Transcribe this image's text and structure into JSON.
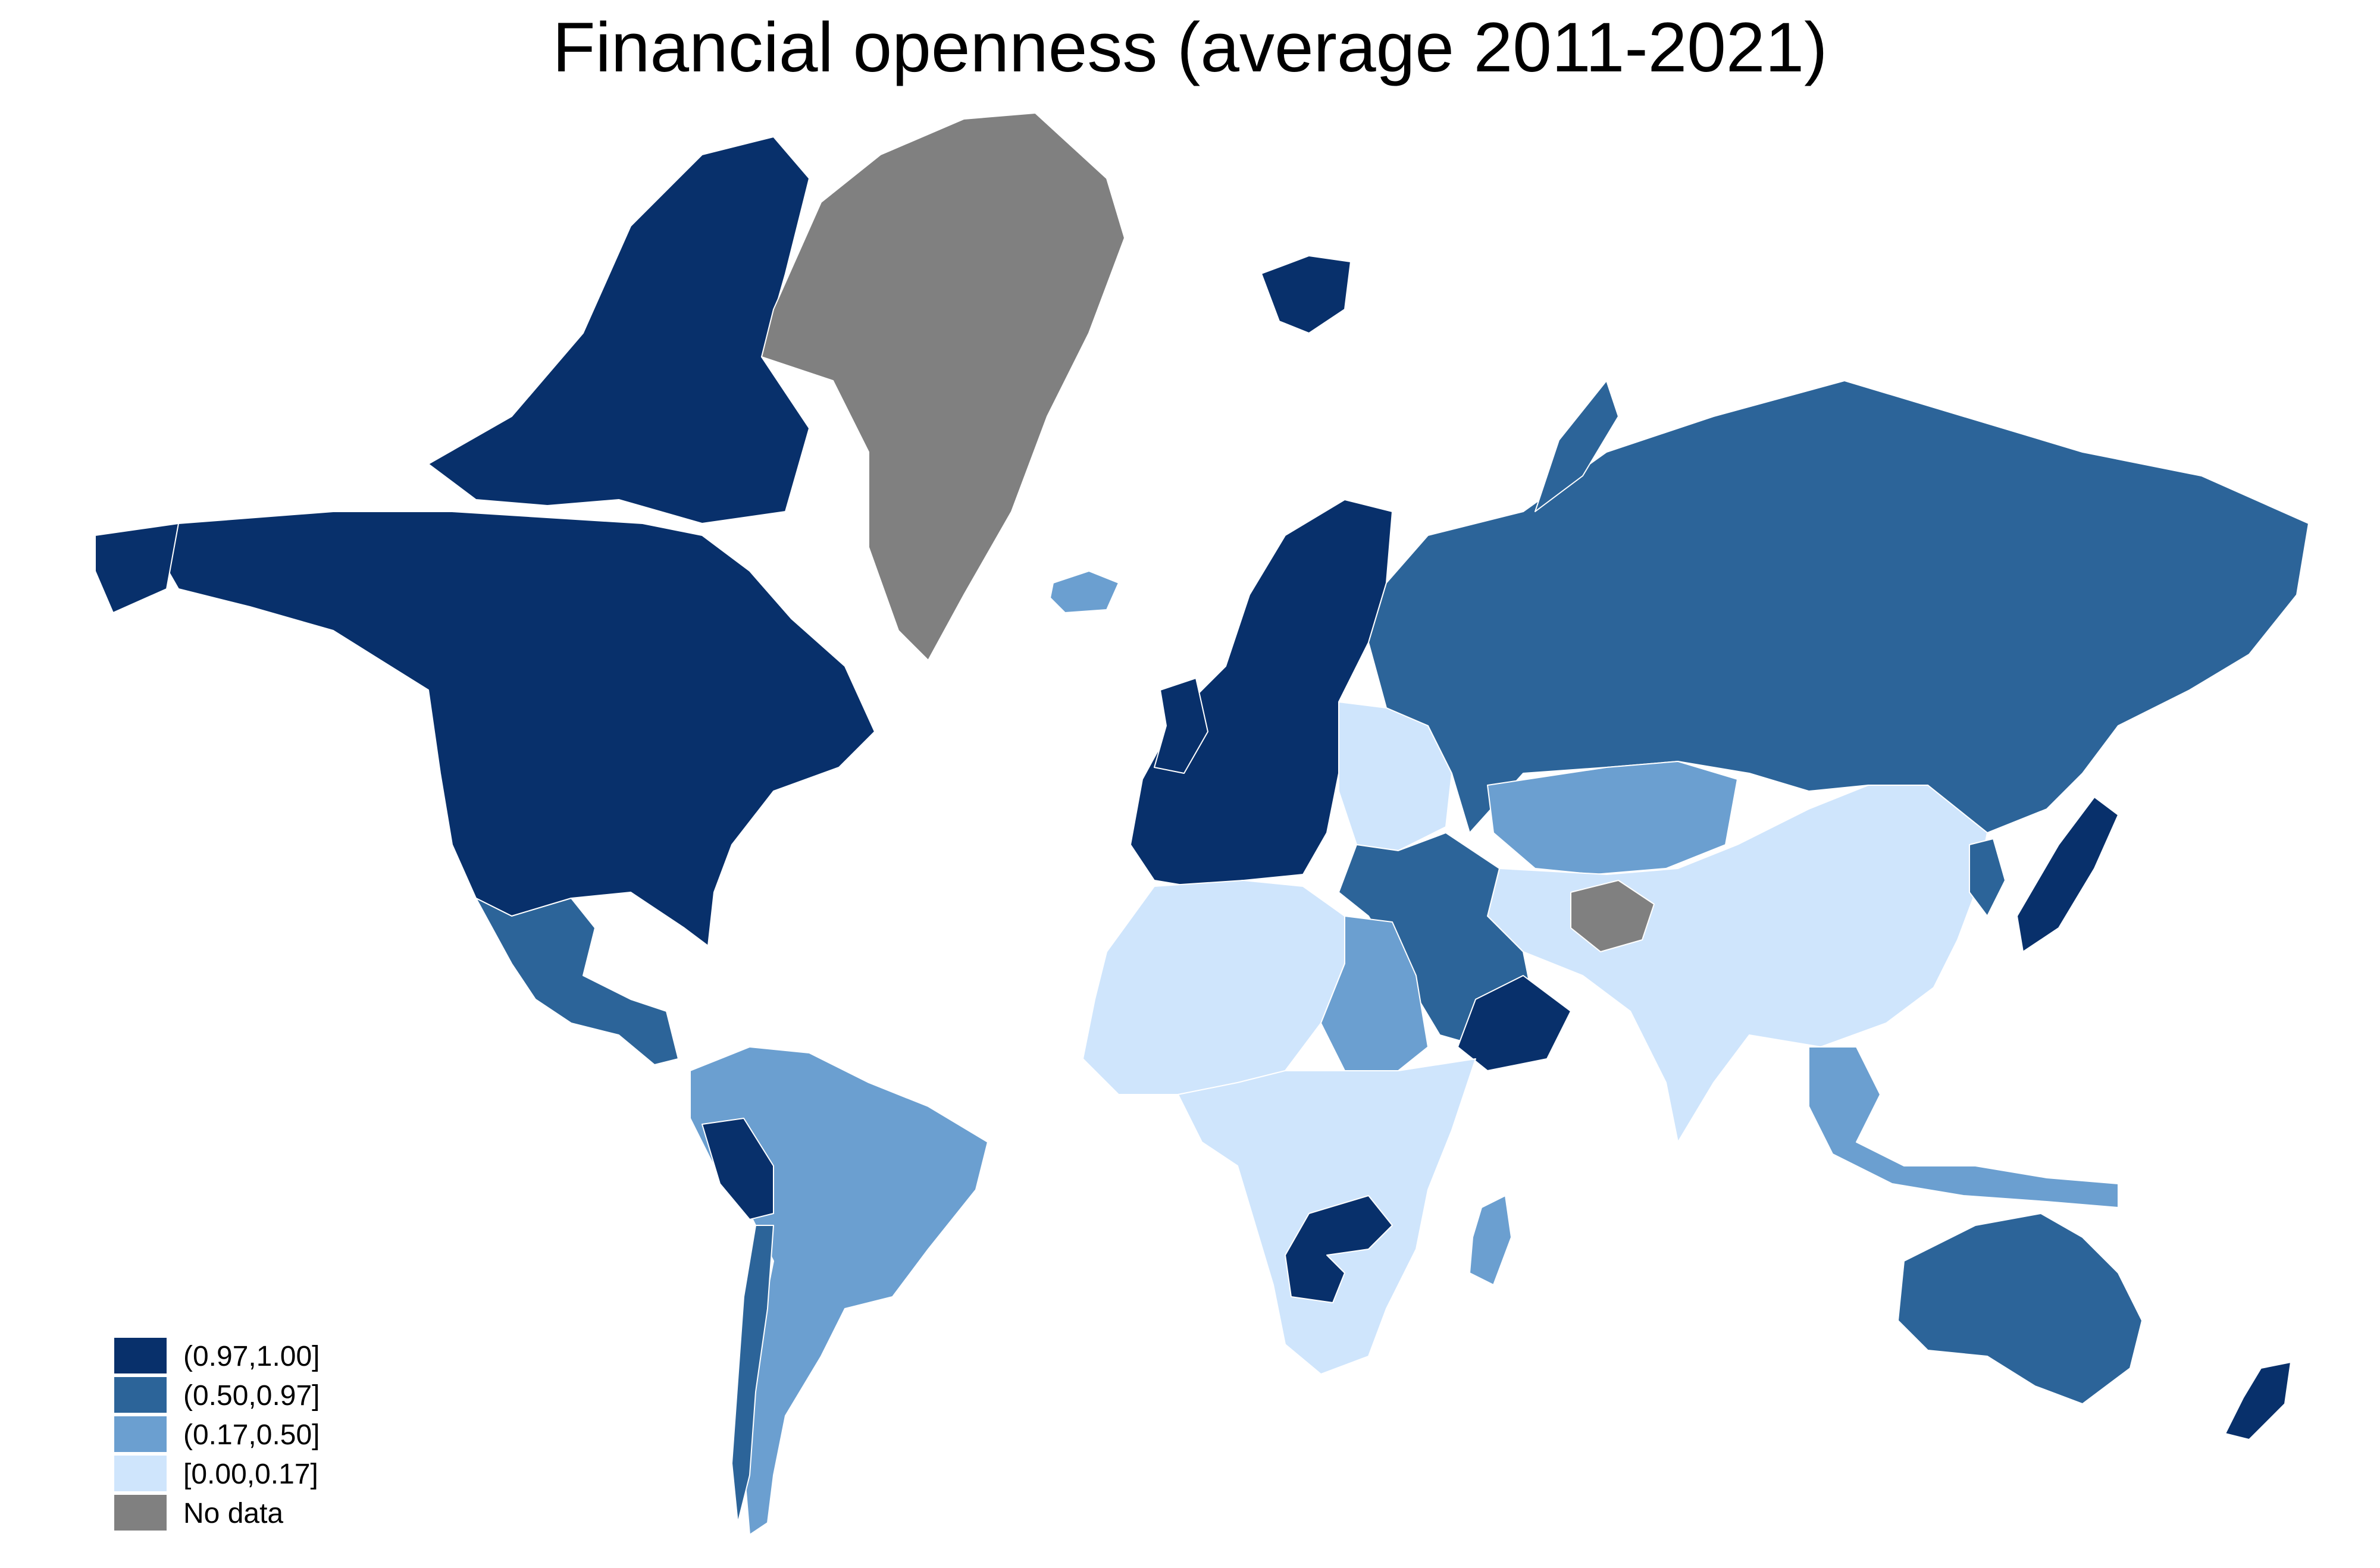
{
  "title": "Financial openness (average 2011-2021)",
  "legend": [
    {
      "key": "c4",
      "label": "(0.97,1.00]",
      "color": "#08306b"
    },
    {
      "key": "c3",
      "label": "(0.50,0.97]",
      "color": "#2c6499"
    },
    {
      "key": "c2",
      "label": "(0.17,0.50]",
      "color": "#6b9fd0"
    },
    {
      "key": "c1",
      "label": "[0.00,0.17]",
      "color": "#cfe5fc"
    },
    {
      "key": "nd",
      "label": "No data",
      "color": "#808080"
    }
  ],
  "regions": [
    {
      "name": "north-america",
      "class": "c4"
    },
    {
      "name": "arctic-islands",
      "class": "c4"
    },
    {
      "name": "greenland",
      "class": "nd"
    },
    {
      "name": "iceland",
      "class": "c2"
    },
    {
      "name": "western-europe",
      "class": "c4"
    },
    {
      "name": "eastern-europe",
      "class": "c1"
    },
    {
      "name": "russia",
      "class": "c3"
    },
    {
      "name": "svalbard",
      "class": "c4"
    },
    {
      "name": "central-asia",
      "class": "c2"
    },
    {
      "name": "china-south-asia",
      "class": "c1"
    },
    {
      "name": "afghanistan",
      "class": "nd"
    },
    {
      "name": "japan",
      "class": "c4"
    },
    {
      "name": "korea",
      "class": "c3"
    },
    {
      "name": "middle-east",
      "class": "c3"
    },
    {
      "name": "oman-uae",
      "class": "c4"
    },
    {
      "name": "north-africa",
      "class": "c1"
    },
    {
      "name": "egypt-sudan",
      "class": "c2"
    },
    {
      "name": "central-southern-africa",
      "class": "c1"
    },
    {
      "name": "zambia-botswana",
      "class": "c4"
    },
    {
      "name": "madagascar",
      "class": "c2"
    },
    {
      "name": "mexico-central-america",
      "class": "c3"
    },
    {
      "name": "south-america",
      "class": "c2"
    },
    {
      "name": "peru",
      "class": "c4"
    },
    {
      "name": "chile",
      "class": "c3"
    },
    {
      "name": "southeast-asia",
      "class": "c2"
    },
    {
      "name": "australia",
      "class": "c3"
    },
    {
      "name": "new-zealand",
      "class": "c4"
    }
  ]
}
